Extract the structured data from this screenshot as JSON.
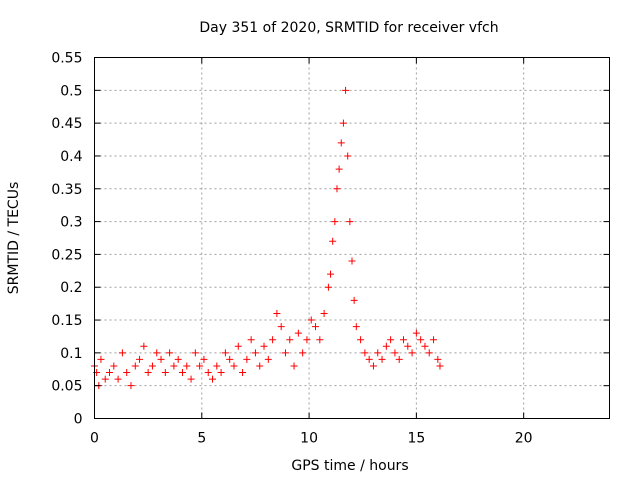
{
  "chart_data": {
    "type": "scatter",
    "title": "Day 351 of 2020, SRMTID for receiver vfch",
    "xlabel": "GPS time / hours",
    "ylabel": "SRMTID / TECUs",
    "xlim": [
      0,
      24
    ],
    "ylim": [
      0,
      0.55
    ],
    "xticks": [
      "0",
      "5",
      "10",
      "15",
      "20"
    ],
    "xtick_values": [
      0,
      5,
      10,
      15,
      20
    ],
    "yticks": [
      "0",
      "0.05",
      "0.1",
      "0.15",
      "0.2",
      "0.25",
      "0.3",
      "0.35",
      "0.4",
      "0.45",
      "0.5",
      "0.55"
    ],
    "ytick_values": [
      0,
      0.05,
      0.1,
      0.15,
      0.2,
      0.25,
      0.3,
      0.35,
      0.4,
      0.45,
      0.5,
      0.55
    ],
    "grid": true,
    "marker": "+",
    "color": "#ff0000",
    "series": [
      {
        "x": [
          0.0,
          0.1,
          0.2,
          0.3,
          0.5,
          0.7,
          0.9,
          1.1,
          1.3,
          1.5,
          1.7,
          1.9,
          2.1,
          2.3,
          2.5,
          2.7,
          2.9,
          3.1,
          3.3,
          3.5,
          3.7,
          3.9,
          4.1,
          4.3,
          4.5,
          4.7,
          4.9,
          5.1,
          5.3,
          5.5,
          5.7,
          5.9,
          6.1,
          6.3,
          6.5,
          6.7,
          6.9,
          7.1,
          7.3,
          7.5,
          7.7,
          7.9,
          8.1,
          8.3,
          8.5,
          8.7,
          8.9,
          9.1,
          9.3,
          9.5,
          9.7,
          9.9,
          10.1,
          10.3,
          10.5,
          10.7,
          10.9,
          11.0,
          11.1,
          11.2,
          11.3,
          11.4,
          11.5,
          11.6,
          11.7,
          11.8,
          11.9,
          12.0,
          12.1,
          12.2,
          12.4,
          12.6,
          12.8,
          13.0,
          13.2,
          13.4,
          13.6,
          13.8,
          14.0,
          14.2,
          14.4,
          14.6,
          14.8,
          15.0,
          15.2,
          15.4,
          15.6,
          15.8,
          16.0,
          16.1
        ],
        "y": [
          0.08,
          0.07,
          0.05,
          0.09,
          0.06,
          0.07,
          0.08,
          0.06,
          0.1,
          0.07,
          0.05,
          0.08,
          0.09,
          0.11,
          0.07,
          0.08,
          0.1,
          0.09,
          0.07,
          0.1,
          0.08,
          0.09,
          0.07,
          0.08,
          0.06,
          0.1,
          0.08,
          0.09,
          0.07,
          0.06,
          0.08,
          0.07,
          0.1,
          0.09,
          0.08,
          0.11,
          0.07,
          0.09,
          0.12,
          0.1,
          0.08,
          0.11,
          0.09,
          0.12,
          0.16,
          0.14,
          0.1,
          0.12,
          0.08,
          0.13,
          0.1,
          0.12,
          0.15,
          0.14,
          0.12,
          0.16,
          0.2,
          0.22,
          0.27,
          0.3,
          0.35,
          0.38,
          0.42,
          0.45,
          0.5,
          0.4,
          0.3,
          0.24,
          0.18,
          0.14,
          0.12,
          0.1,
          0.09,
          0.08,
          0.1,
          0.09,
          0.11,
          0.12,
          0.1,
          0.09,
          0.12,
          0.11,
          0.1,
          0.13,
          0.12,
          0.11,
          0.1,
          0.12,
          0.09,
          0.08
        ]
      }
    ]
  }
}
